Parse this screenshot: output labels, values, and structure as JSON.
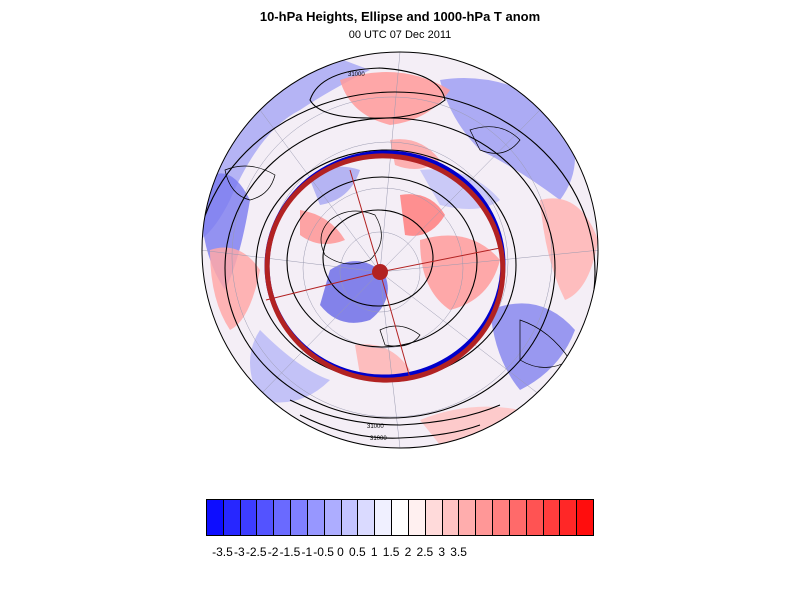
{
  "header": {
    "title": "10-hPa Heights, Ellipse and 1000-hPa T anom",
    "subtitle": "00 UTC 07 Dec 2011"
  },
  "map": {
    "projection": "polar-orthographic-north",
    "contour_labels": [
      "31000",
      "31000",
      "31000"
    ],
    "ellipse_color": "#b22222",
    "zero_line_color": "#0000cc",
    "land_outline_color": "#000000"
  },
  "colorbar": {
    "colors": [
      "#0d0dff",
      "#2727ff",
      "#3d3dff",
      "#5353ff",
      "#6a6aff",
      "#8080ff",
      "#9797ff",
      "#adadff",
      "#c3c3ff",
      "#dadaff",
      "#f0f0ff",
      "#ffffff",
      "#fff0f0",
      "#ffdada",
      "#ffc3c3",
      "#ffadad",
      "#ff9797",
      "#ff8080",
      "#ff6a6a",
      "#ff5353",
      "#ff3d3d",
      "#ff2727",
      "#ff0d0d"
    ],
    "labels": [
      "-3.5",
      "-3",
      "-2.5",
      "-2",
      "-1.5",
      "-1",
      "-0.5",
      "0",
      "0.5",
      "1",
      "1.5",
      "2",
      "2.5",
      "3",
      "3.5"
    ]
  }
}
